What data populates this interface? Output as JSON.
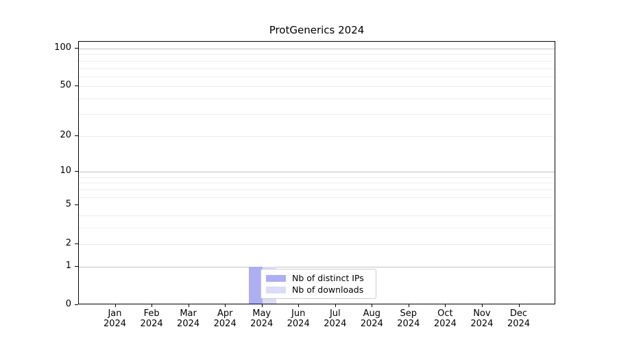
{
  "chart_data": {
    "type": "bar",
    "title": "ProtGenerics 2024",
    "categories": [
      "Jan 2024",
      "Feb 2024",
      "Mar 2024",
      "Apr 2024",
      "May 2024",
      "Jun 2024",
      "Jul 2024",
      "Aug 2024",
      "Sep 2024",
      "Oct 2024",
      "Nov 2024",
      "Dec 2024"
    ],
    "x_ticks": [
      {
        "month": "Jan",
        "year": "2024"
      },
      {
        "month": "Feb",
        "year": "2024"
      },
      {
        "month": "Mar",
        "year": "2024"
      },
      {
        "month": "Apr",
        "year": "2024"
      },
      {
        "month": "May",
        "year": "2024"
      },
      {
        "month": "Jun",
        "year": "2024"
      },
      {
        "month": "Jul",
        "year": "2024"
      },
      {
        "month": "Aug",
        "year": "2024"
      },
      {
        "month": "Sep",
        "year": "2024"
      },
      {
        "month": "Oct",
        "year": "2024"
      },
      {
        "month": "Nov",
        "year": "2024"
      },
      {
        "month": "Dec",
        "year": "2024"
      }
    ],
    "series": [
      {
        "name": "Nb of distinct IPs",
        "color": "#aeaef2",
        "values": [
          0,
          0,
          0,
          0,
          1,
          0,
          0,
          0,
          0,
          0,
          0,
          0
        ]
      },
      {
        "name": "Nb of downloads",
        "color": "#dcdcf8",
        "values": [
          0,
          0,
          0,
          0,
          1,
          0,
          0,
          0,
          0,
          0,
          0,
          0
        ]
      }
    ],
    "xlabel": "",
    "ylabel": "",
    "y_axis": {
      "scale": "log1p",
      "tick_values": [
        0,
        1,
        2,
        5,
        10,
        20,
        50,
        100
      ],
      "strong_gridlines": [
        1,
        10,
        100
      ],
      "light_gridlines": [
        2,
        3,
        4,
        6,
        7,
        8,
        9,
        20,
        30,
        40,
        50,
        60,
        70,
        80,
        90
      ],
      "ylim": [
        0,
        113
      ]
    },
    "legend": {
      "position": "lower center",
      "entries": [
        "Nb of distinct IPs",
        "Nb of downloads"
      ]
    },
    "colors": {
      "grid_strong": "#c3c3c3",
      "grid_light": "#ededed",
      "spine": "#000000",
      "text": "#000000",
      "background": "#ffffff"
    }
  }
}
